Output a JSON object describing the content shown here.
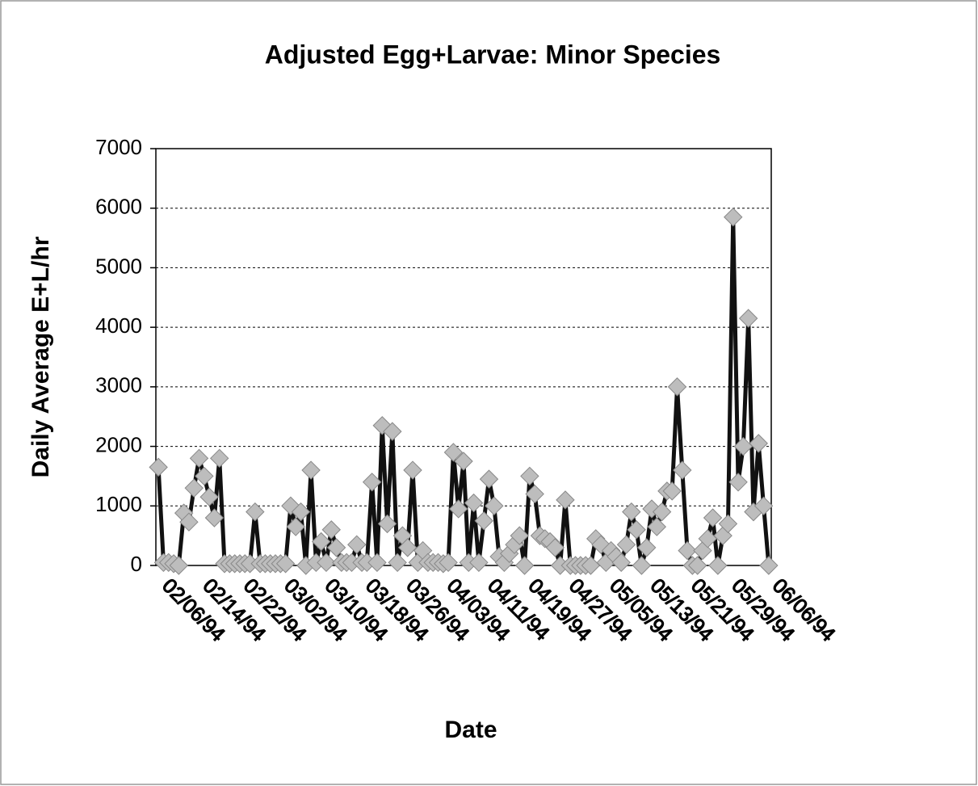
{
  "chart_data": {
    "type": "line",
    "title": "Adjusted Egg+Larvae: Minor Species",
    "x_label": "Date",
    "y_label": "Daily Average E+L/hr",
    "categories": [
      "02/06/94",
      null,
      null,
      null,
      null,
      null,
      null,
      null,
      "02/14/94",
      null,
      null,
      null,
      null,
      null,
      null,
      null,
      "02/22/94",
      null,
      null,
      null,
      null,
      null,
      null,
      null,
      "03/02/94",
      null,
      null,
      null,
      null,
      null,
      null,
      null,
      "03/10/94",
      null,
      null,
      null,
      null,
      null,
      null,
      null,
      "03/18/94",
      null,
      null,
      null,
      null,
      null,
      null,
      null,
      "03/26/94",
      null,
      null,
      null,
      null,
      null,
      null,
      null,
      "04/03/94",
      null,
      null,
      null,
      null,
      null,
      null,
      null,
      "04/11/94",
      null,
      null,
      null,
      null,
      null,
      null,
      null,
      "04/19/94",
      null,
      null,
      null,
      null,
      null,
      null,
      null,
      "04/27/94",
      null,
      null,
      null,
      null,
      null,
      null,
      null,
      "05/05/94",
      null,
      null,
      null,
      null,
      null,
      null,
      null,
      "05/13/94",
      null,
      null,
      null,
      null,
      null,
      null,
      null,
      "05/21/94",
      null,
      null,
      null,
      null,
      null,
      null,
      null,
      "05/29/94",
      null,
      null,
      null,
      null,
      null,
      null,
      null,
      "06/06/94"
    ],
    "series": [
      {
        "color": "#111111",
        "marker_color": "#bdbdbd",
        "values": [
          1650,
          50,
          50,
          30,
          0,
          880,
          730,
          1300,
          1800,
          1500,
          1150,
          800,
          1800,
          30,
          30,
          30,
          30,
          30,
          30,
          900,
          30,
          30,
          30,
          30,
          30,
          30,
          1000,
          650,
          900,
          0,
          1600,
          50,
          400,
          50,
          600,
          300,
          50,
          50,
          50,
          350,
          50,
          50,
          1400,
          50,
          2350,
          700,
          2250,
          50,
          500,
          300,
          1600,
          50,
          250,
          50,
          50,
          50,
          30,
          50,
          1900,
          950,
          1750,
          50,
          1050,
          50,
          750,
          1450,
          1000,
          150,
          50,
          200,
          350,
          500,
          0,
          1500,
          1200,
          500,
          450,
          400,
          300,
          0,
          1100,
          0,
          0,
          0,
          0,
          0,
          450,
          350,
          50,
          250,
          150,
          50,
          350,
          900,
          600,
          0,
          300,
          950,
          650,
          900,
          1250,
          1250,
          3000,
          1600,
          250,
          0,
          0,
          250,
          450,
          800,
          0,
          500,
          700,
          5850,
          1400,
          2000,
          4150,
          900,
          2050,
          1000,
          0
        ]
      }
    ],
    "ylim": [
      0,
      7000
    ],
    "yticks": [
      0,
      1000,
      2000,
      3000,
      4000,
      5000,
      6000,
      7000
    ],
    "grid": true
  }
}
